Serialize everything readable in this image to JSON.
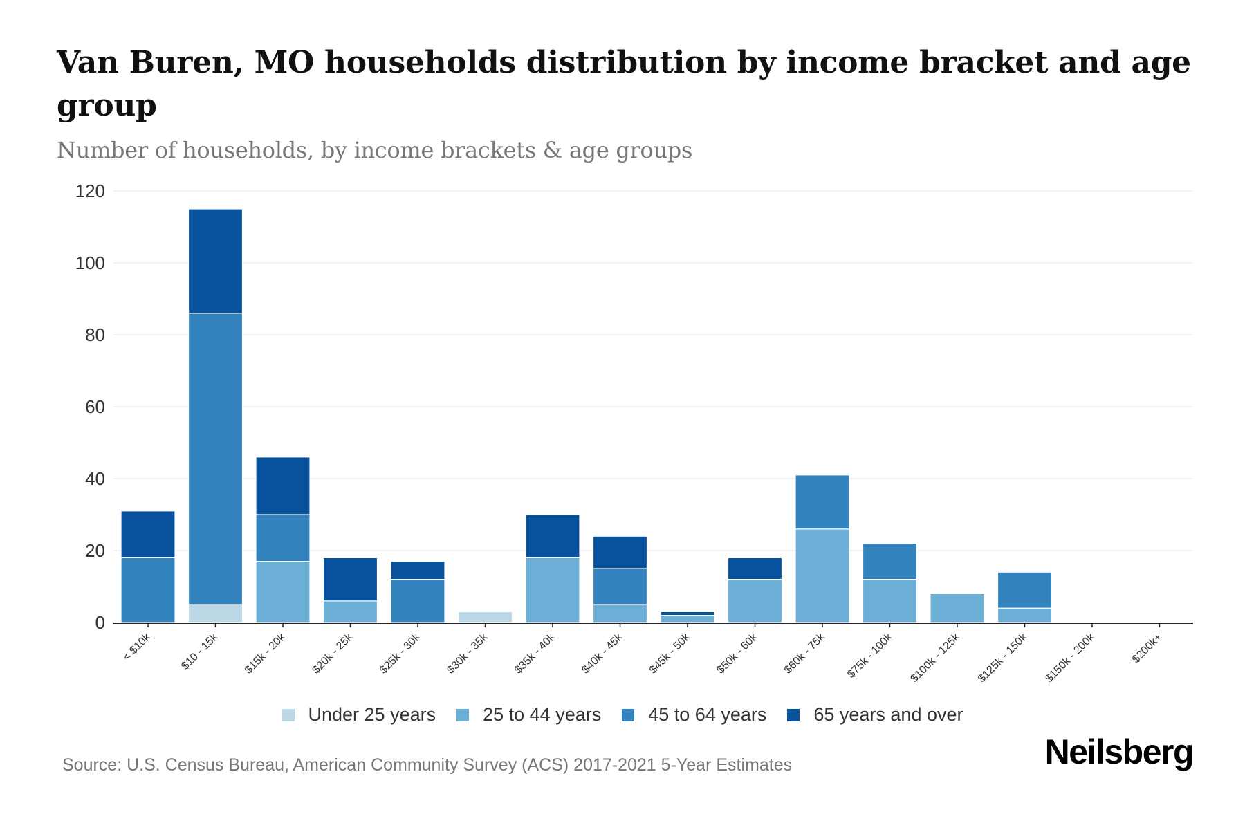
{
  "header": {
    "title": "Van Buren, MO households distribution by income bracket and age group",
    "subtitle": "Number of households, by income brackets & age groups"
  },
  "footer": {
    "source": "Source: U.S. Census Bureau, American Community Survey (ACS) 2017-2021 5-Year Estimates",
    "logo": "Neilsberg"
  },
  "chart_data": {
    "type": "bar",
    "stacked": true,
    "title": "Van Buren, MO households distribution by income bracket and age group",
    "subtitle": "Number of households, by income brackets & age groups",
    "xlabel": "",
    "ylabel": "",
    "ylim": [
      0,
      120
    ],
    "yticks": [
      0,
      20,
      40,
      60,
      80,
      100,
      120
    ],
    "grid": true,
    "legend_position": "bottom-center",
    "categories": [
      "< $10k",
      "$10 - 15k",
      "$15k - 20k",
      "$20k - 25k",
      "$25k - 30k",
      "$30k - 35k",
      "$35k - 40k",
      "$40k - 45k",
      "$45k - 50k",
      "$50k - 60k",
      "$60k - 75k",
      "$75k - 100k",
      "$100k - 125k",
      "$125k - 150k",
      "$150k - 200k",
      "$200k+"
    ],
    "series": [
      {
        "name": "Under 25 years",
        "color": "#bcd7e6",
        "values": [
          0,
          5,
          0,
          0,
          0,
          3,
          0,
          0,
          0,
          0,
          0,
          0,
          0,
          0,
          0,
          0
        ]
      },
      {
        "name": "25 to 44 years",
        "color": "#6baed6",
        "values": [
          0,
          0,
          17,
          6,
          0,
          0,
          18,
          5,
          2,
          12,
          26,
          12,
          8,
          4,
          0,
          0
        ]
      },
      {
        "name": "45 to 64 years",
        "color": "#3383be",
        "values": [
          18,
          81,
          13,
          0,
          12,
          0,
          0,
          10,
          0,
          0,
          15,
          10,
          0,
          10,
          0,
          0
        ]
      },
      {
        "name": "65 years and over",
        "color": "#08519c",
        "values": [
          13,
          29,
          16,
          12,
          5,
          0,
          12,
          9,
          1,
          6,
          0,
          0,
          0,
          0,
          0,
          0
        ]
      }
    ]
  }
}
